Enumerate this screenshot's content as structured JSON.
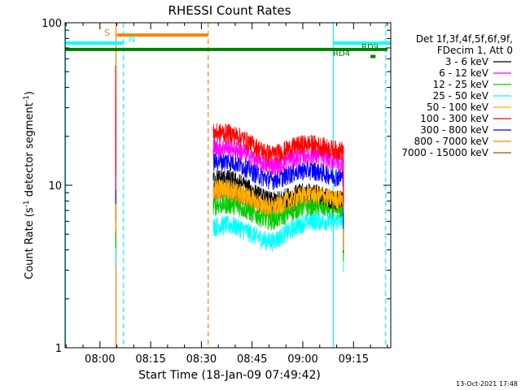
{
  "chart_data": {
    "type": "line",
    "title": "RHESSI Count Rates",
    "xlabel": "Start Time (18-Jan-09 07:49:42)",
    "ylabel": "Count Rate (s",
    "ylabel_sup1": "-1",
    "ylabel_mid": " detector segment",
    "ylabel_sup2": "-1",
    "ylabel_end": ")",
    "yscale": "log",
    "xlim": [
      "07:49:42",
      "09:26:00"
    ],
    "ylim": [
      1,
      100
    ],
    "x_ticks": [
      "08:00",
      "08:15",
      "08:30",
      "08:45",
      "09:00",
      "09:15"
    ],
    "y_ticks": [
      "1",
      "10",
      "100"
    ],
    "timestamp": "13-Oct-2021 17:48",
    "legend_header": [
      "Det 1f,3f,4f,5f,6f,9f,",
      "FDecim 1, Att 0"
    ],
    "legend_position": "right",
    "series": [
      {
        "name": "3 - 6 keV",
        "color": "#000000",
        "level_start": 11,
        "level_mid": 8.5,
        "level_end": 8.6
      },
      {
        "name": "6 - 12 keV",
        "color": "#ff00ff",
        "level_start": 17,
        "level_mid": 14,
        "level_end": 15
      },
      {
        "name": "12 - 25 keV",
        "color": "#00cc00",
        "level_start": 7.5,
        "level_mid": 6.5,
        "level_end": 7.6
      },
      {
        "name": "25 - 50 keV",
        "color": "#00ffff",
        "level_start": 5.6,
        "level_mid": 4.8,
        "level_end": 6.5
      },
      {
        "name": "50 - 100 keV",
        "color": "#ffb000",
        "level_start": 9.5,
        "level_mid": 7.8,
        "level_end": 8.8
      },
      {
        "name": "100 - 300 keV",
        "color": "#ff0000",
        "level_start": 21,
        "level_mid": 16.5,
        "level_end": 17.5
      },
      {
        "name": "300 - 800 keV",
        "color": "#0000ff",
        "level_start": 14,
        "level_mid": 11.5,
        "level_end": 12
      },
      {
        "name": "800 - 7000 keV",
        "color": "#ff8000",
        "level_start": 9,
        "level_mid": 7.6,
        "level_end": 8.4
      },
      {
        "name": "7000 - 15000 keV",
        "color": "#a05000",
        "level_start": 9,
        "level_mid": 7.5,
        "level_end": 8.3
      }
    ],
    "data_interval": {
      "start": "08:33:30",
      "end": "09:12:00"
    },
    "spike": {
      "time": "08:04:45"
    },
    "flag_labels": {
      "saa": "S",
      "night": "N",
      "rd9": "RD9",
      "rd4": "RD4"
    },
    "flag_bars": {
      "night": {
        "color": "#00ffff",
        "start": "07:49:42",
        "end": "08:07:00",
        "start2": "09:09:00",
        "end2": "09:26:00",
        "level": 75
      },
      "saa": {
        "color": "#ff8000",
        "start": "08:05:00",
        "end": "08:32:00",
        "level": 84
      },
      "green": {
        "color": "#008000",
        "start": "07:49:42",
        "end": "09:25:00",
        "level": 68.5
      },
      "rd4": {
        "color": "#008000",
        "start": "09:20:00",
        "end": "09:21:30",
        "level": 62
      }
    },
    "vertical_lines": [
      {
        "time": "08:04:45",
        "color": "#ff8000",
        "style": "solid"
      },
      {
        "time": "08:07:00",
        "color": "#00ffff",
        "style": "dashed"
      },
      {
        "time": "08:32:00",
        "color": "#ff8000",
        "style": "dashed"
      },
      {
        "time": "09:09:00",
        "color": "#00ffff",
        "style": "solid"
      },
      {
        "time": "09:24:30",
        "color": "#00ffff",
        "style": "dashed"
      },
      {
        "time": "07:49:50",
        "color": "#00ffff",
        "style": "solid"
      }
    ]
  }
}
